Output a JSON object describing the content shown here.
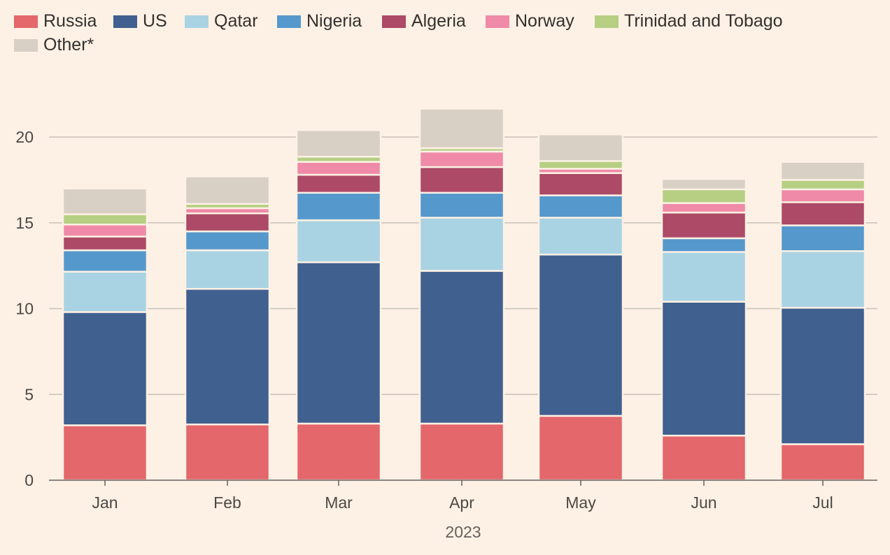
{
  "chart_data": {
    "type": "bar",
    "stacked": true,
    "xlabel": "2023",
    "ylabel": "",
    "ylim": [
      0,
      22.5
    ],
    "yticks": [
      0,
      5,
      10,
      15,
      20
    ],
    "grid": true,
    "legend_position": "top-left",
    "categories": [
      "Jan",
      "Feb",
      "Mar",
      "Apr",
      "May",
      "Jun",
      "Jul"
    ],
    "series": [
      {
        "name": "Russia",
        "color": "#e3676b",
        "values": [
          3.2,
          3.25,
          3.3,
          3.3,
          3.75,
          2.6,
          2.1
        ]
      },
      {
        "name": "US",
        "color": "#40608f",
        "values": [
          6.6,
          7.9,
          9.4,
          8.9,
          9.4,
          7.8,
          7.95
        ]
      },
      {
        "name": "Qatar",
        "color": "#a9d3e3",
        "values": [
          2.35,
          2.25,
          2.45,
          3.1,
          2.15,
          2.9,
          3.3
        ]
      },
      {
        "name": "Nigeria",
        "color": "#5598cc",
        "values": [
          1.25,
          1.1,
          1.6,
          1.45,
          1.3,
          0.8,
          1.5
        ]
      },
      {
        "name": "Algeria",
        "color": "#ac4a67",
        "values": [
          0.8,
          1.05,
          1.05,
          1.5,
          1.3,
          1.5,
          1.35
        ]
      },
      {
        "name": "Norway",
        "color": "#ef8aa8",
        "values": [
          0.7,
          0.3,
          0.75,
          0.9,
          0.25,
          0.55,
          0.75
        ]
      },
      {
        "name": "Trinidad and Tobago",
        "color": "#b6cf83",
        "values": [
          0.6,
          0.25,
          0.3,
          0.2,
          0.45,
          0.8,
          0.55
        ]
      },
      {
        "name": "Other*",
        "color": "#d8cfc5",
        "values": [
          1.5,
          1.6,
          1.55,
          2.3,
          1.55,
          0.6,
          1.05
        ]
      }
    ]
  }
}
